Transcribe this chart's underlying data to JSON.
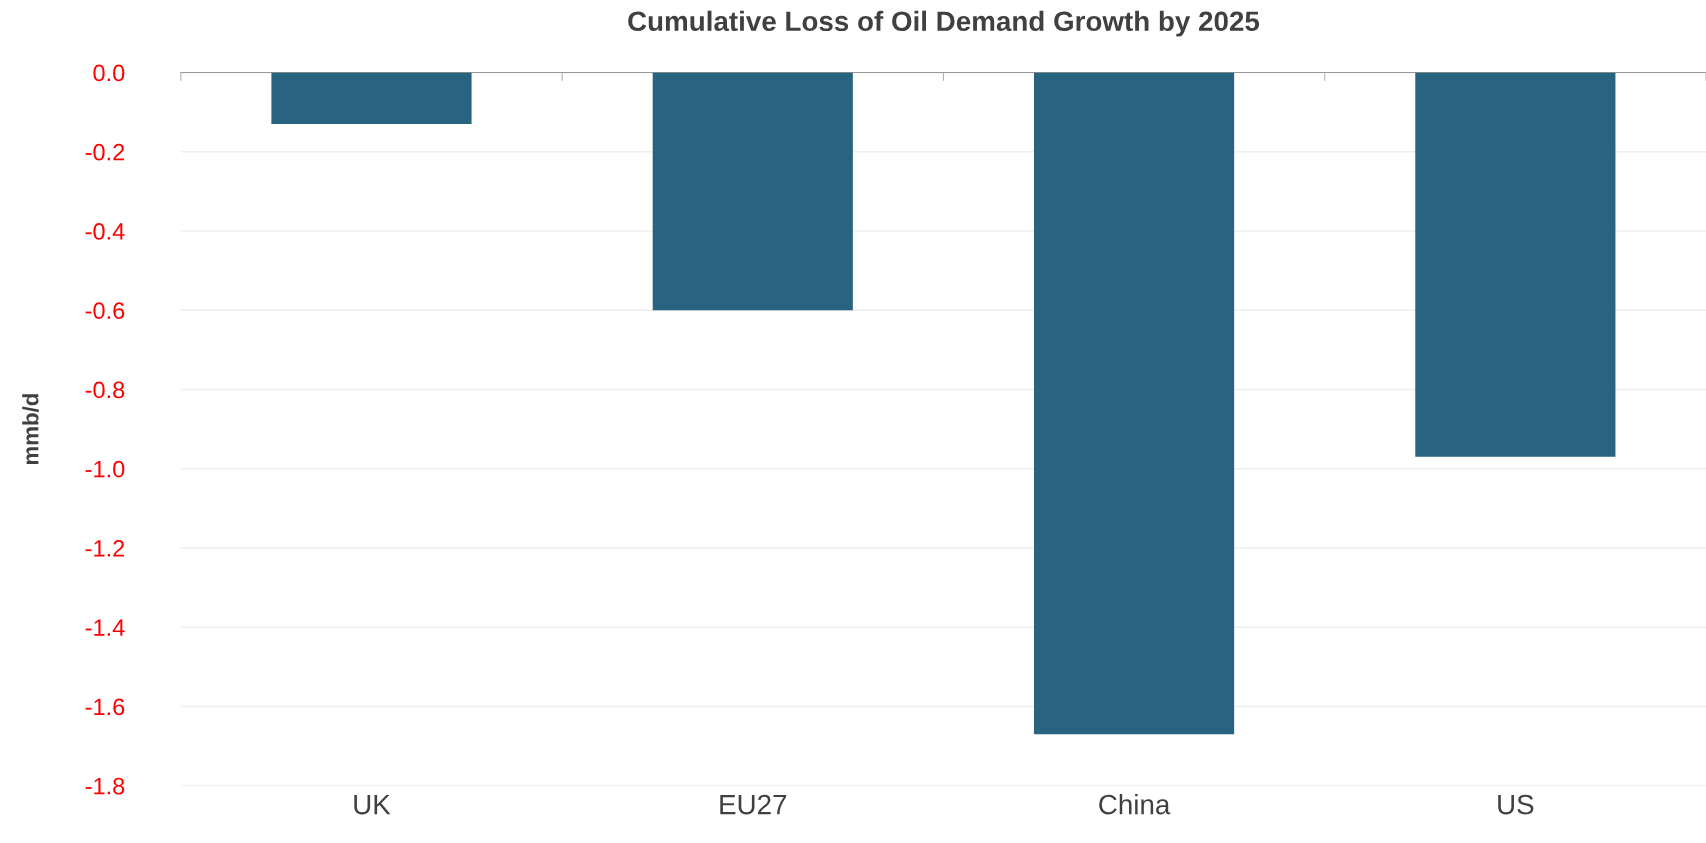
{
  "chart_data": {
    "type": "bar",
    "title": "Cumulative Loss of Oil Demand Growth by 2025",
    "ylabel": "mmb/d",
    "categories": [
      "UK",
      "EU27",
      "China",
      "US"
    ],
    "values": [
      -0.13,
      -0.6,
      -1.67,
      -0.97
    ],
    "color": "#286380",
    "ylim": [
      -1.8,
      0
    ],
    "yticks": [
      {
        "value": 0,
        "label": "0.0"
      },
      {
        "value": -0.2,
        "label": "-0.2"
      },
      {
        "value": -0.4,
        "label": "-0.4"
      },
      {
        "value": -0.6,
        "label": "-0.6"
      },
      {
        "value": -0.8,
        "label": "-0.8"
      },
      {
        "value": -1.0,
        "label": "-1.0"
      },
      {
        "value": -1.2,
        "label": "-1.2"
      },
      {
        "value": -1.4,
        "label": "-1.4"
      },
      {
        "value": -1.6,
        "label": "-1.6"
      },
      {
        "value": -1.8,
        "label": "-1.8"
      }
    ],
    "grid": "y"
  }
}
